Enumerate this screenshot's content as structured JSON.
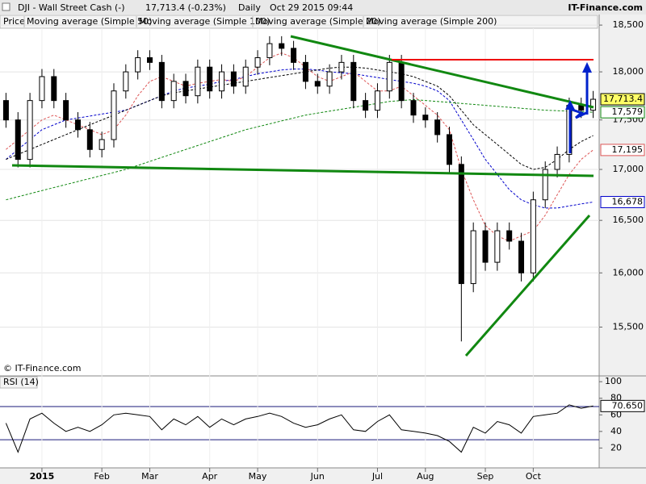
{
  "chart_data": [
    {
      "type": "candlestick",
      "title": "DJI - Wall Street Cash (-)",
      "subtitle": "17,713.4 (-0.23%)",
      "period": "Daily",
      "timestamp": "Oct 29 2015 09:44",
      "source": "IT-Finance.com",
      "copyright": "© IT-Finance.com",
      "log_scale": true,
      "categories": [
        null,
        null,
        null,
        "2015",
        null,
        null,
        null,
        null,
        "Feb",
        null,
        null,
        null,
        "Mar",
        null,
        null,
        null,
        null,
        "Apr",
        null,
        null,
        null,
        "May",
        null,
        null,
        null,
        null,
        "Jun",
        null,
        null,
        null,
        null,
        "Jul",
        null,
        null,
        null,
        "Aug",
        null,
        null,
        null,
        null,
        "Sep",
        null,
        null,
        null,
        "Oct",
        null,
        null,
        null,
        null,
        null
      ],
      "ylim": [
        15070,
        18615
      ],
      "yticks": [
        {
          "value": 15500,
          "label": "15,500"
        },
        {
          "value": 16000,
          "label": "16,000"
        },
        {
          "value": 16500,
          "label": "16,500"
        },
        {
          "value": 17000,
          "label": "17,000"
        },
        {
          "value": 17500,
          "label": "17,500"
        },
        {
          "value": 18000,
          "label": "18,000"
        },
        {
          "value": 18500,
          "label": "18,500"
        }
      ],
      "price": {
        "name": "Price",
        "up_color": "#ffffff",
        "down_color": "#000000",
        "end_label": "17,713.4",
        "label_color": "#ffff66",
        "open": [
          17700,
          17500,
          17100,
          17700,
          17950,
          17700,
          17500,
          17400,
          17200,
          17300,
          17800,
          18000,
          18150,
          18100,
          17700,
          17900,
          17750,
          18050,
          17800,
          18000,
          17850,
          18050,
          18150,
          18300,
          18250,
          18100,
          17900,
          17850,
          18000,
          18100,
          17700,
          17600,
          17800,
          18100,
          17700,
          17550,
          17500,
          17350,
          17050,
          15900,
          16400,
          16100,
          16400,
          16300,
          16000,
          16700,
          17000,
          17150,
          17650,
          17600
        ],
        "high": [
          17780,
          17580,
          17780,
          18030,
          18030,
          17780,
          17580,
          17480,
          17380,
          17880,
          18080,
          18230,
          18230,
          18180,
          17980,
          17980,
          18130,
          18130,
          18080,
          18080,
          18130,
          18230,
          18380,
          18380,
          18330,
          18180,
          17980,
          18080,
          18180,
          18180,
          17780,
          17880,
          18180,
          18180,
          17780,
          17630,
          17580,
          17430,
          17130,
          16480,
          16480,
          16480,
          16480,
          16380,
          16780,
          17080,
          17230,
          17730,
          17730,
          17800
        ],
        "low": [
          17420,
          17020,
          17020,
          17620,
          17620,
          17420,
          17320,
          17120,
          17120,
          17220,
          17720,
          17920,
          18020,
          17620,
          17620,
          17670,
          17670,
          17720,
          17720,
          17770,
          17770,
          17970,
          18070,
          18170,
          18020,
          17820,
          17770,
          17770,
          17920,
          17620,
          17520,
          17520,
          17720,
          17620,
          17470,
          17420,
          17270,
          16970,
          15370,
          15820,
          16020,
          16020,
          16220,
          15920,
          15920,
          16620,
          16920,
          17070,
          17520,
          17520
        ],
        "close": [
          17500,
          17100,
          17700,
          17950,
          17700,
          17500,
          17400,
          17200,
          17300,
          17800,
          18000,
          18150,
          18100,
          17700,
          17900,
          17750,
          18050,
          17800,
          18000,
          17850,
          18050,
          18150,
          18300,
          18250,
          18100,
          17900,
          17850,
          18000,
          18100,
          17700,
          17600,
          17800,
          18100,
          17700,
          17550,
          17500,
          17350,
          17050,
          15900,
          16400,
          16100,
          16400,
          16300,
          16000,
          16700,
          17000,
          17150,
          17650,
          17600,
          17713.4
        ]
      },
      "series": [
        {
          "name": "Moving average (Simple 50)",
          "color": "#0000cc",
          "end_label": "16,678",
          "values": [
            17100,
            17200,
            17300,
            17400,
            17450,
            17500,
            17520,
            17540,
            17560,
            17580,
            17600,
            17650,
            17700,
            17750,
            17800,
            17830,
            17850,
            17870,
            17900,
            17920,
            17950,
            17980,
            18000,
            18020,
            18030,
            18030,
            18020,
            18000,
            17990,
            17980,
            17960,
            17940,
            17920,
            17900,
            17880,
            17850,
            17800,
            17700,
            17500,
            17300,
            17100,
            16950,
            16800,
            16700,
            16650,
            16620,
            16620,
            16640,
            16660,
            16678
          ]
        },
        {
          "name": "Moving average (Simple 100)",
          "color": "#000000",
          "values": [
            17100,
            17150,
            17200,
            17250,
            17300,
            17350,
            17400,
            17450,
            17500,
            17550,
            17600,
            17650,
            17700,
            17750,
            17780,
            17800,
            17820,
            17840,
            17860,
            17880,
            17900,
            17920,
            17940,
            17960,
            17980,
            18000,
            18020,
            18040,
            18050,
            18050,
            18040,
            18020,
            18000,
            17980,
            17950,
            17900,
            17850,
            17750,
            17600,
            17450,
            17350,
            17250,
            17150,
            17050,
            17000,
            17020,
            17100,
            17200,
            17280,
            17340
          ]
        },
        {
          "name": "Moving average (Simple 20)",
          "color": "#dd5555",
          "end_label": "17,195",
          "values": [
            17200,
            17300,
            17400,
            17500,
            17550,
            17500,
            17450,
            17400,
            17350,
            17400,
            17550,
            17750,
            17900,
            17950,
            17900,
            17850,
            17880,
            17900,
            17920,
            17900,
            17950,
            18050,
            18150,
            18200,
            18150,
            18050,
            17950,
            17900,
            17950,
            18000,
            17900,
            17800,
            17800,
            17850,
            17750,
            17650,
            17550,
            17400,
            17000,
            16700,
            16450,
            16350,
            16300,
            16350,
            16400,
            16550,
            16750,
            16950,
            17100,
            17195
          ]
        },
        {
          "name": "Moving average (Simple 200)",
          "color": "#118811",
          "end_label": "17,579",
          "values": [
            16700,
            16730,
            16760,
            16790,
            16820,
            16850,
            16880,
            16910,
            16940,
            16970,
            17000,
            17040,
            17080,
            17120,
            17160,
            17200,
            17240,
            17280,
            17320,
            17360,
            17400,
            17430,
            17460,
            17490,
            17520,
            17550,
            17570,
            17590,
            17610,
            17630,
            17650,
            17670,
            17690,
            17700,
            17710,
            17700,
            17690,
            17680,
            17670,
            17660,
            17650,
            17640,
            17630,
            17620,
            17610,
            17600,
            17595,
            17590,
            17585,
            17579
          ]
        }
      ]
    },
    {
      "type": "line",
      "title": "RSI (14)",
      "ylim": [
        -2,
        106
      ],
      "yticks": [
        20,
        40,
        60,
        80,
        100
      ],
      "levels": [
        30,
        70
      ],
      "series": [
        {
          "name": "RSI (14)",
          "color": "#000000",
          "end_label": "70.650",
          "values": [
            50,
            15,
            55,
            62,
            50,
            40,
            45,
            40,
            48,
            60,
            62,
            60,
            58,
            42,
            55,
            48,
            58,
            45,
            55,
            48,
            55,
            58,
            62,
            58,
            50,
            45,
            48,
            55,
            60,
            42,
            40,
            52,
            60,
            42,
            40,
            38,
            35,
            28,
            15,
            45,
            38,
            52,
            48,
            38,
            58,
            60,
            62,
            72,
            68,
            70.65
          ]
        }
      ]
    }
  ]
}
